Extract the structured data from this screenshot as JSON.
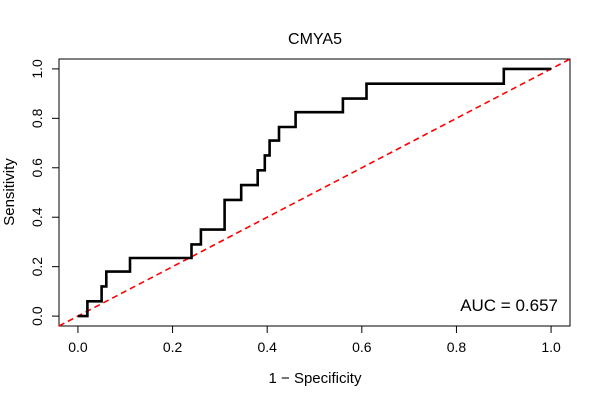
{
  "chart_data": {
    "type": "line",
    "title": "CMYA5",
    "xlabel": "1 − Specificity",
    "ylabel": "Sensitivity",
    "xlim": [
      -0.04,
      1.04
    ],
    "ylim": [
      -0.04,
      1.04
    ],
    "x_ticks": [
      0.0,
      0.2,
      0.4,
      0.6,
      0.8,
      1.0
    ],
    "x_tick_labels": [
      "0.0",
      "0.2",
      "0.4",
      "0.6",
      "0.8",
      "1.0"
    ],
    "y_ticks": [
      0.0,
      0.2,
      0.4,
      0.6,
      0.8,
      1.0
    ],
    "y_tick_labels": [
      "0.0",
      "0.2",
      "0.4",
      "0.6",
      "0.8",
      "1.0"
    ],
    "grid": false,
    "annotation": "AUC = 0.657",
    "auc": 0.657,
    "series": [
      {
        "name": "ROC curve",
        "color": "#000000",
        "style": "step",
        "x": [
          0.0,
          0.02,
          0.02,
          0.05,
          0.05,
          0.06,
          0.06,
          0.07,
          0.07,
          0.11,
          0.11,
          0.24,
          0.24,
          0.26,
          0.26,
          0.31,
          0.31,
          0.345,
          0.345,
          0.38,
          0.38,
          0.395,
          0.395,
          0.405,
          0.405,
          0.425,
          0.425,
          0.46,
          0.46,
          0.56,
          0.56,
          0.61,
          0.61,
          0.9,
          0.9,
          1.0
        ],
        "y": [
          0.0,
          0.0,
          0.06,
          0.06,
          0.12,
          0.12,
          0.18,
          0.18,
          0.18,
          0.18,
          0.235,
          0.235,
          0.29,
          0.29,
          0.35,
          0.35,
          0.47,
          0.47,
          0.53,
          0.53,
          0.59,
          0.59,
          0.65,
          0.65,
          0.71,
          0.71,
          0.765,
          0.765,
          0.825,
          0.825,
          0.88,
          0.88,
          0.94,
          0.94,
          1.0,
          1.0
        ]
      },
      {
        "name": "Reference line",
        "color": "#ff0000",
        "style": "dashed",
        "x": [
          -0.04,
          1.04
        ],
        "y": [
          -0.04,
          1.04
        ]
      }
    ]
  }
}
